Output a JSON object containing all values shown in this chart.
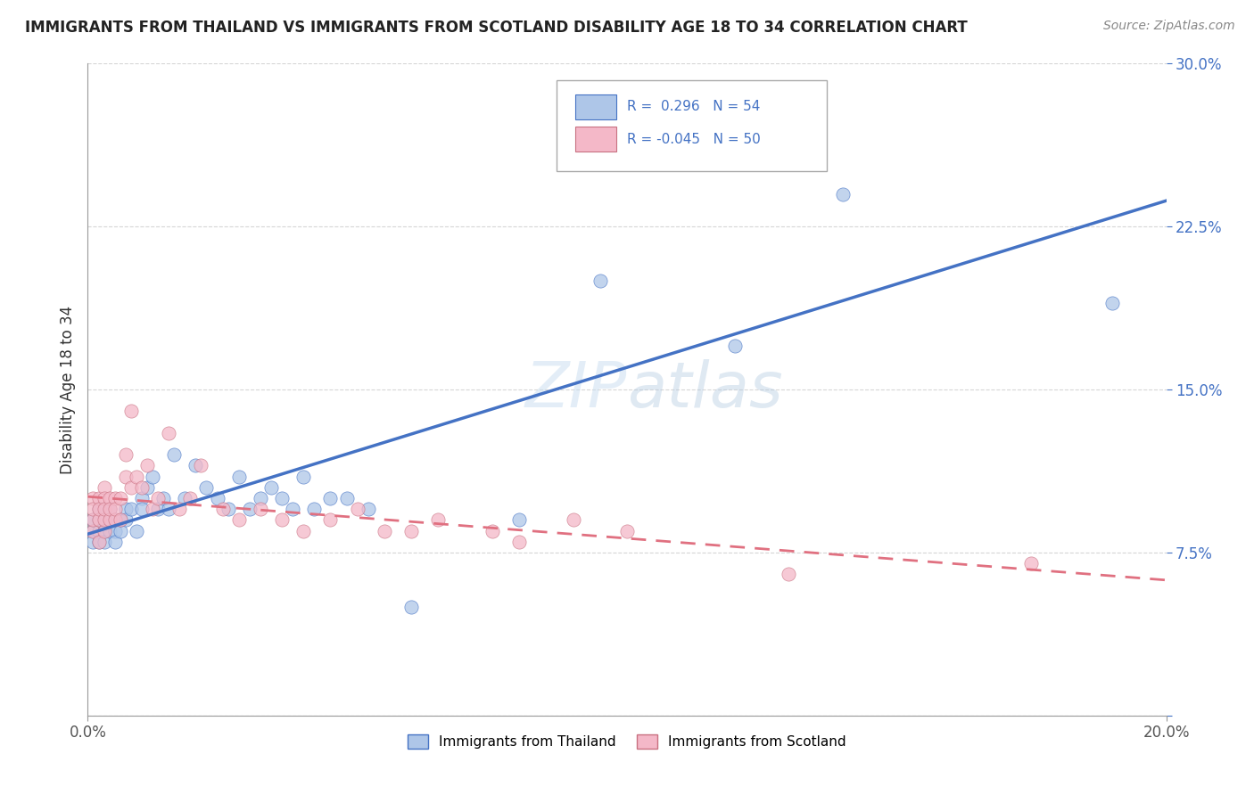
{
  "title": "IMMIGRANTS FROM THAILAND VS IMMIGRANTS FROM SCOTLAND DISABILITY AGE 18 TO 34 CORRELATION CHART",
  "source": "Source: ZipAtlas.com",
  "xlabel": "",
  "ylabel": "Disability Age 18 to 34",
  "xlim": [
    0.0,
    0.2
  ],
  "ylim": [
    0.0,
    0.3
  ],
  "xticks": [
    0.0,
    0.2
  ],
  "xticklabels": [
    "0.0%",
    "20.0%"
  ],
  "yticks": [
    0.0,
    0.075,
    0.15,
    0.225,
    0.3
  ],
  "yticklabels": [
    "",
    "7.5%",
    "15.0%",
    "22.5%",
    "30.0%"
  ],
  "thailand_color": "#aec6e8",
  "scotland_color": "#f4b8c8",
  "trend_thailand_color": "#4472c4",
  "trend_scotland_color": "#e07080",
  "r_thailand": 0.296,
  "n_thailand": 54,
  "r_scotland": -0.045,
  "n_scotland": 50,
  "thailand_x": [
    0.001,
    0.001,
    0.001,
    0.002,
    0.002,
    0.002,
    0.002,
    0.003,
    0.003,
    0.003,
    0.003,
    0.004,
    0.004,
    0.004,
    0.005,
    0.005,
    0.005,
    0.006,
    0.006,
    0.007,
    0.007,
    0.008,
    0.009,
    0.01,
    0.01,
    0.011,
    0.012,
    0.013,
    0.014,
    0.015,
    0.016,
    0.018,
    0.02,
    0.022,
    0.024,
    0.026,
    0.028,
    0.03,
    0.032,
    0.034,
    0.036,
    0.038,
    0.04,
    0.042,
    0.045,
    0.048,
    0.052,
    0.06,
    0.08,
    0.095,
    0.1,
    0.12,
    0.14,
    0.19
  ],
  "thailand_y": [
    0.085,
    0.09,
    0.08,
    0.095,
    0.09,
    0.085,
    0.08,
    0.09,
    0.085,
    0.095,
    0.08,
    0.09,
    0.085,
    0.095,
    0.09,
    0.085,
    0.08,
    0.085,
    0.09,
    0.095,
    0.09,
    0.095,
    0.085,
    0.1,
    0.095,
    0.105,
    0.11,
    0.095,
    0.1,
    0.095,
    0.12,
    0.1,
    0.115,
    0.105,
    0.1,
    0.095,
    0.11,
    0.095,
    0.1,
    0.105,
    0.1,
    0.095,
    0.11,
    0.095,
    0.1,
    0.1,
    0.095,
    0.05,
    0.09,
    0.2,
    0.27,
    0.17,
    0.24,
    0.19
  ],
  "scotland_x": [
    0.001,
    0.001,
    0.001,
    0.001,
    0.002,
    0.002,
    0.002,
    0.002,
    0.003,
    0.003,
    0.003,
    0.003,
    0.003,
    0.004,
    0.004,
    0.004,
    0.005,
    0.005,
    0.005,
    0.006,
    0.006,
    0.007,
    0.007,
    0.008,
    0.008,
    0.009,
    0.01,
    0.011,
    0.012,
    0.013,
    0.015,
    0.017,
    0.019,
    0.021,
    0.025,
    0.028,
    0.032,
    0.036,
    0.04,
    0.045,
    0.05,
    0.055,
    0.06,
    0.065,
    0.075,
    0.08,
    0.09,
    0.1,
    0.13,
    0.175
  ],
  "scotland_y": [
    0.085,
    0.09,
    0.1,
    0.095,
    0.08,
    0.09,
    0.1,
    0.095,
    0.085,
    0.09,
    0.105,
    0.1,
    0.095,
    0.09,
    0.1,
    0.095,
    0.1,
    0.09,
    0.095,
    0.09,
    0.1,
    0.11,
    0.12,
    0.105,
    0.14,
    0.11,
    0.105,
    0.115,
    0.095,
    0.1,
    0.13,
    0.095,
    0.1,
    0.115,
    0.095,
    0.09,
    0.095,
    0.09,
    0.085,
    0.09,
    0.095,
    0.085,
    0.085,
    0.09,
    0.085,
    0.08,
    0.09,
    0.085,
    0.065,
    0.07
  ]
}
